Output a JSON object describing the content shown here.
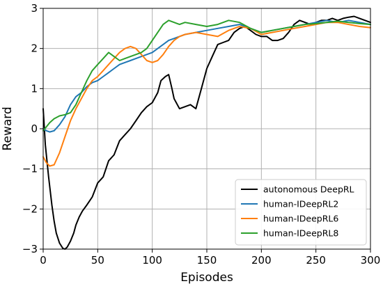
{
  "chart_data": {
    "type": "line",
    "title": "",
    "xlabel": "Episodes",
    "ylabel": "Reward",
    "xlim": [
      0,
      300
    ],
    "ylim": [
      -3,
      3
    ],
    "xticks": [
      0,
      50,
      100,
      150,
      200,
      250,
      300
    ],
    "yticks": [
      -3,
      -2,
      -1,
      0,
      1,
      2,
      3
    ],
    "xtick_labels": [
      "0",
      "50",
      "100",
      "150",
      "200",
      "250",
      "300"
    ],
    "ytick_labels": [
      "−3",
      "−2",
      "−1",
      "0",
      "1",
      "2",
      "3"
    ],
    "grid": true,
    "legend_position": "lower-right",
    "series": [
      {
        "name": "autonomous DeepRL",
        "color": "#000000",
        "x": [
          0,
          2,
          5,
          8,
          10,
          12,
          15,
          18,
          20,
          22,
          25,
          28,
          30,
          33,
          36,
          40,
          45,
          50,
          55,
          60,
          65,
          70,
          75,
          80,
          85,
          90,
          95,
          100,
          105,
          108,
          112,
          115,
          118,
          120,
          125,
          130,
          135,
          140,
          145,
          150,
          155,
          160,
          165,
          170,
          175,
          180,
          185,
          190,
          195,
          200,
          205,
          210,
          215,
          220,
          225,
          230,
          235,
          240,
          245,
          250,
          255,
          260,
          265,
          270,
          275,
          280,
          285,
          290,
          295,
          300
        ],
        "y": [
          0.5,
          -0.4,
          -1.2,
          -1.9,
          -2.3,
          -2.6,
          -2.85,
          -2.98,
          -3.0,
          -2.95,
          -2.8,
          -2.6,
          -2.4,
          -2.2,
          -2.05,
          -1.9,
          -1.7,
          -1.35,
          -1.2,
          -0.8,
          -0.65,
          -0.3,
          -0.15,
          0.0,
          0.2,
          0.4,
          0.55,
          0.65,
          0.9,
          1.2,
          1.3,
          1.35,
          1.0,
          0.75,
          0.5,
          0.55,
          0.6,
          0.5,
          1.0,
          1.5,
          1.8,
          2.1,
          2.15,
          2.2,
          2.4,
          2.5,
          2.55,
          2.45,
          2.35,
          2.3,
          2.3,
          2.2,
          2.2,
          2.25,
          2.4,
          2.6,
          2.7,
          2.65,
          2.6,
          2.65,
          2.7,
          2.7,
          2.75,
          2.7,
          2.75,
          2.78,
          2.8,
          2.75,
          2.7,
          2.65
        ]
      },
      {
        "name": "human-IDeepRL2",
        "color": "#1f77b4",
        "x": [
          0,
          3,
          6,
          10,
          15,
          20,
          25,
          30,
          35,
          40,
          45,
          50,
          55,
          60,
          65,
          70,
          75,
          80,
          85,
          90,
          95,
          100,
          105,
          110,
          115,
          120,
          125,
          130,
          140,
          150,
          160,
          170,
          180,
          190,
          200,
          210,
          220,
          230,
          240,
          250,
          260,
          270,
          280,
          290,
          300
        ],
        "y": [
          0.0,
          -0.05,
          -0.08,
          -0.05,
          0.1,
          0.3,
          0.6,
          0.8,
          0.9,
          1.05,
          1.15,
          1.2,
          1.3,
          1.4,
          1.5,
          1.6,
          1.65,
          1.7,
          1.75,
          1.8,
          1.85,
          1.9,
          2.0,
          2.1,
          2.2,
          2.25,
          2.3,
          2.35,
          2.4,
          2.45,
          2.5,
          2.55,
          2.6,
          2.5,
          2.4,
          2.45,
          2.5,
          2.55,
          2.6,
          2.65,
          2.7,
          2.65,
          2.7,
          2.65,
          2.6
        ]
      },
      {
        "name": "human-IDeepRL6",
        "color": "#ff7f0e",
        "x": [
          0,
          3,
          6,
          10,
          15,
          20,
          25,
          30,
          35,
          40,
          45,
          50,
          55,
          60,
          65,
          70,
          75,
          80,
          85,
          90,
          95,
          100,
          105,
          110,
          115,
          120,
          125,
          130,
          140,
          150,
          160,
          170,
          180,
          190,
          200,
          210,
          220,
          230,
          240,
          250,
          260,
          270,
          280,
          290,
          300
        ],
        "y": [
          -0.7,
          -0.85,
          -0.93,
          -0.9,
          -0.6,
          -0.2,
          0.2,
          0.5,
          0.75,
          1.0,
          1.2,
          1.3,
          1.45,
          1.6,
          1.75,
          1.9,
          2.0,
          2.05,
          2.0,
          1.85,
          1.7,
          1.65,
          1.7,
          1.85,
          2.05,
          2.2,
          2.3,
          2.35,
          2.4,
          2.35,
          2.3,
          2.45,
          2.55,
          2.5,
          2.35,
          2.4,
          2.45,
          2.5,
          2.55,
          2.6,
          2.65,
          2.65,
          2.6,
          2.55,
          2.52
        ]
      },
      {
        "name": "human-IDeepRL8",
        "color": "#2ca02c",
        "x": [
          0,
          3,
          6,
          10,
          15,
          20,
          25,
          30,
          35,
          40,
          45,
          50,
          55,
          60,
          65,
          70,
          75,
          80,
          85,
          90,
          95,
          100,
          105,
          110,
          115,
          120,
          125,
          130,
          140,
          150,
          160,
          170,
          180,
          190,
          200,
          210,
          220,
          230,
          240,
          250,
          260,
          270,
          280,
          290,
          300
        ],
        "y": [
          -0.05,
          0.05,
          0.15,
          0.25,
          0.32,
          0.35,
          0.4,
          0.6,
          0.9,
          1.2,
          1.45,
          1.6,
          1.75,
          1.9,
          1.8,
          1.7,
          1.75,
          1.8,
          1.85,
          1.9,
          2.0,
          2.2,
          2.4,
          2.6,
          2.7,
          2.65,
          2.6,
          2.65,
          2.6,
          2.55,
          2.6,
          2.7,
          2.65,
          2.5,
          2.4,
          2.45,
          2.5,
          2.55,
          2.6,
          2.62,
          2.65,
          2.68,
          2.65,
          2.62,
          2.6
        ]
      }
    ]
  }
}
